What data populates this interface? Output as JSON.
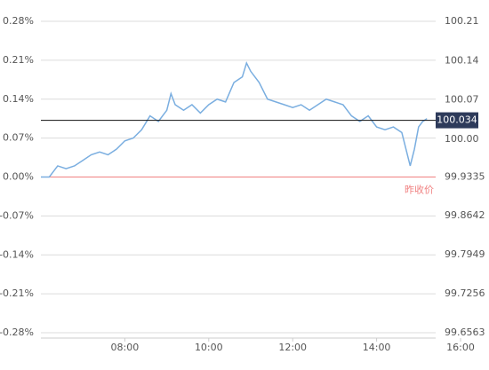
{
  "chart_data": {
    "type": "line",
    "x": [
      6.0,
      6.2,
      6.3,
      6.4,
      6.6,
      6.8,
      7.0,
      7.2,
      7.4,
      7.6,
      7.8,
      8.0,
      8.2,
      8.4,
      8.6,
      8.8,
      9.0,
      9.1,
      9.2,
      9.4,
      9.6,
      9.8,
      10.0,
      10.2,
      10.4,
      10.6,
      10.8,
      10.9,
      11.0,
      11.2,
      11.4,
      11.6,
      11.8,
      12.0,
      12.2,
      12.4,
      12.6,
      12.8,
      13.0,
      13.2,
      13.4,
      13.6,
      13.8,
      14.0,
      14.2,
      14.4,
      14.6,
      14.8,
      14.9,
      15.0,
      15.1,
      15.2
    ],
    "series": [
      {
        "color": "#7aaee0",
        "values": [
          0.0,
          0.0,
          0.01,
          0.02,
          0.015,
          0.02,
          0.03,
          0.04,
          0.045,
          0.04,
          0.05,
          0.065,
          0.07,
          0.085,
          0.11,
          0.1,
          0.12,
          0.15,
          0.13,
          0.12,
          0.13,
          0.115,
          0.13,
          0.14,
          0.135,
          0.17,
          0.18,
          0.205,
          0.19,
          0.17,
          0.14,
          0.135,
          0.13,
          0.125,
          0.13,
          0.12,
          0.13,
          0.14,
          0.135,
          0.13,
          0.11,
          0.1,
          0.11,
          0.09,
          0.085,
          0.09,
          0.08,
          0.02,
          0.05,
          0.09,
          0.1,
          0.105
        ]
      }
    ],
    "xlim": [
      6,
      16
    ],
    "xticks": [
      {
        "value": 8,
        "label": "08:00"
      },
      {
        "value": 10,
        "label": "10:00"
      },
      {
        "value": 12,
        "label": "12:00"
      },
      {
        "value": 14,
        "label": "14:00"
      },
      {
        "value": 16,
        "label": "16:00"
      }
    ],
    "ylim": [
      -0.28,
      0.28
    ],
    "yticks": [
      {
        "value": 0.28,
        "label": "0.28%"
      },
      {
        "value": 0.21,
        "label": "0.21%"
      },
      {
        "value": 0.14,
        "label": "0.14%"
      },
      {
        "value": 0.07,
        "label": "0.07%"
      },
      {
        "value": 0,
        "label": "0.00%"
      },
      {
        "value": -0.07,
        "label": "-0.07%"
      },
      {
        "value": -0.14,
        "label": "-0.14%"
      },
      {
        "value": -0.21,
        "label": "-0.21%"
      },
      {
        "value": -0.28,
        "label": "-0.28%"
      }
    ],
    "y2lim": [
      99.6563,
      100.21
    ],
    "y2ticks": [
      100.21,
      100.14,
      100.07,
      {
        "value": 100,
        "label": "100.00"
      },
      99.9335,
      99.8642,
      99.7949,
      99.7256,
      99.6563
    ],
    "reference_line": {
      "value": 0,
      "label": "昨收价",
      "color": "#f08080"
    },
    "current_price": {
      "value": 100.034,
      "axis": "y2",
      "color": "#2d3a5a"
    },
    "grid": true
  }
}
